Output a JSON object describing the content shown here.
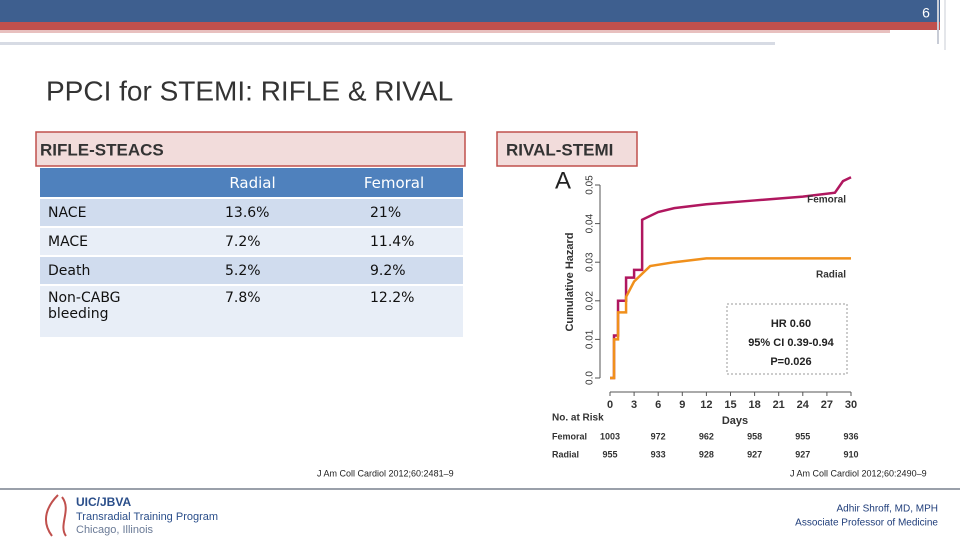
{
  "page_number": "6",
  "title": "PPCI for STEMI: RIFLE & RIVAL",
  "left": {
    "heading": "RIFLE-STEACS",
    "table": {
      "columns": [
        "Radial",
        "Femoral"
      ],
      "rows": [
        [
          "NACE",
          "13.6%",
          "21%"
        ],
        [
          "MACE",
          "7.2%",
          "11.4%"
        ],
        [
          "Death",
          "5.2%",
          "9.2%"
        ],
        [
          "Non-CABG bleeding",
          "7.8%",
          "12.2%"
        ]
      ]
    },
    "citation": "J Am Coll Cardiol 2012;60:2481–9"
  },
  "right": {
    "heading": "RIVAL-STEMI",
    "figure": {
      "type": "line",
      "panel": "A",
      "ylabel": "Cumulative Hazard",
      "xlabel": "Days",
      "xlim": [
        0,
        30
      ],
      "xticks": [
        0,
        3,
        6,
        9,
        12,
        15,
        18,
        21,
        24,
        27,
        30
      ],
      "ylim": [
        0,
        0.05
      ],
      "yticks": [
        {
          "value": 0,
          "label": "0.0"
        },
        0.01,
        0.02,
        0.03,
        0.04,
        0.05
      ],
      "series": [
        {
          "name": "Femoral",
          "color": "#b0175f",
          "x": [
            0,
            0.5,
            0.5,
            1,
            1,
            2,
            2,
            3,
            3,
            4,
            4,
            6,
            8,
            12,
            18,
            24,
            28,
            29,
            30
          ],
          "values": [
            0,
            0,
            0.011,
            0.011,
            0.02,
            0.02,
            0.026,
            0.026,
            0.028,
            0.028,
            0.041,
            0.043,
            0.044,
            0.045,
            0.046,
            0.047,
            0.048,
            0.051,
            0.052
          ]
        },
        {
          "name": "Radial",
          "color": "#f0901c",
          "x": [
            0,
            0.5,
            0.5,
            1,
            1,
            2,
            2,
            3,
            4,
            5,
            8,
            12,
            30
          ],
          "values": [
            0,
            0,
            0.01,
            0.01,
            0.017,
            0.017,
            0.021,
            0.025,
            0.027,
            0.029,
            0.03,
            0.031,
            0.031
          ]
        }
      ],
      "annotations": [
        "HR 0.60",
        "95% CI 0.39-0.94",
        "P=0.026"
      ],
      "at_risk": {
        "title": "No. at Risk",
        "days": [
          0,
          6,
          12,
          18,
          24,
          30
        ],
        "rows": [
          {
            "name": "Femoral",
            "values": [
              1003,
              972,
              962,
              958,
              955,
              936
            ]
          },
          {
            "name": "Radial",
            "values": [
              955,
              933,
              928,
              927,
              927,
              910
            ]
          }
        ]
      }
    },
    "citation": "J Am Coll Cardiol 2012;60:2490–9"
  },
  "footer": {
    "logo": [
      "UIC/JBVA",
      "Transradial Training Program",
      "Chicago, Illinois"
    ],
    "author": "Adhir Shroff, MD, MPH",
    "role": "Associate Professor of Medicine"
  }
}
